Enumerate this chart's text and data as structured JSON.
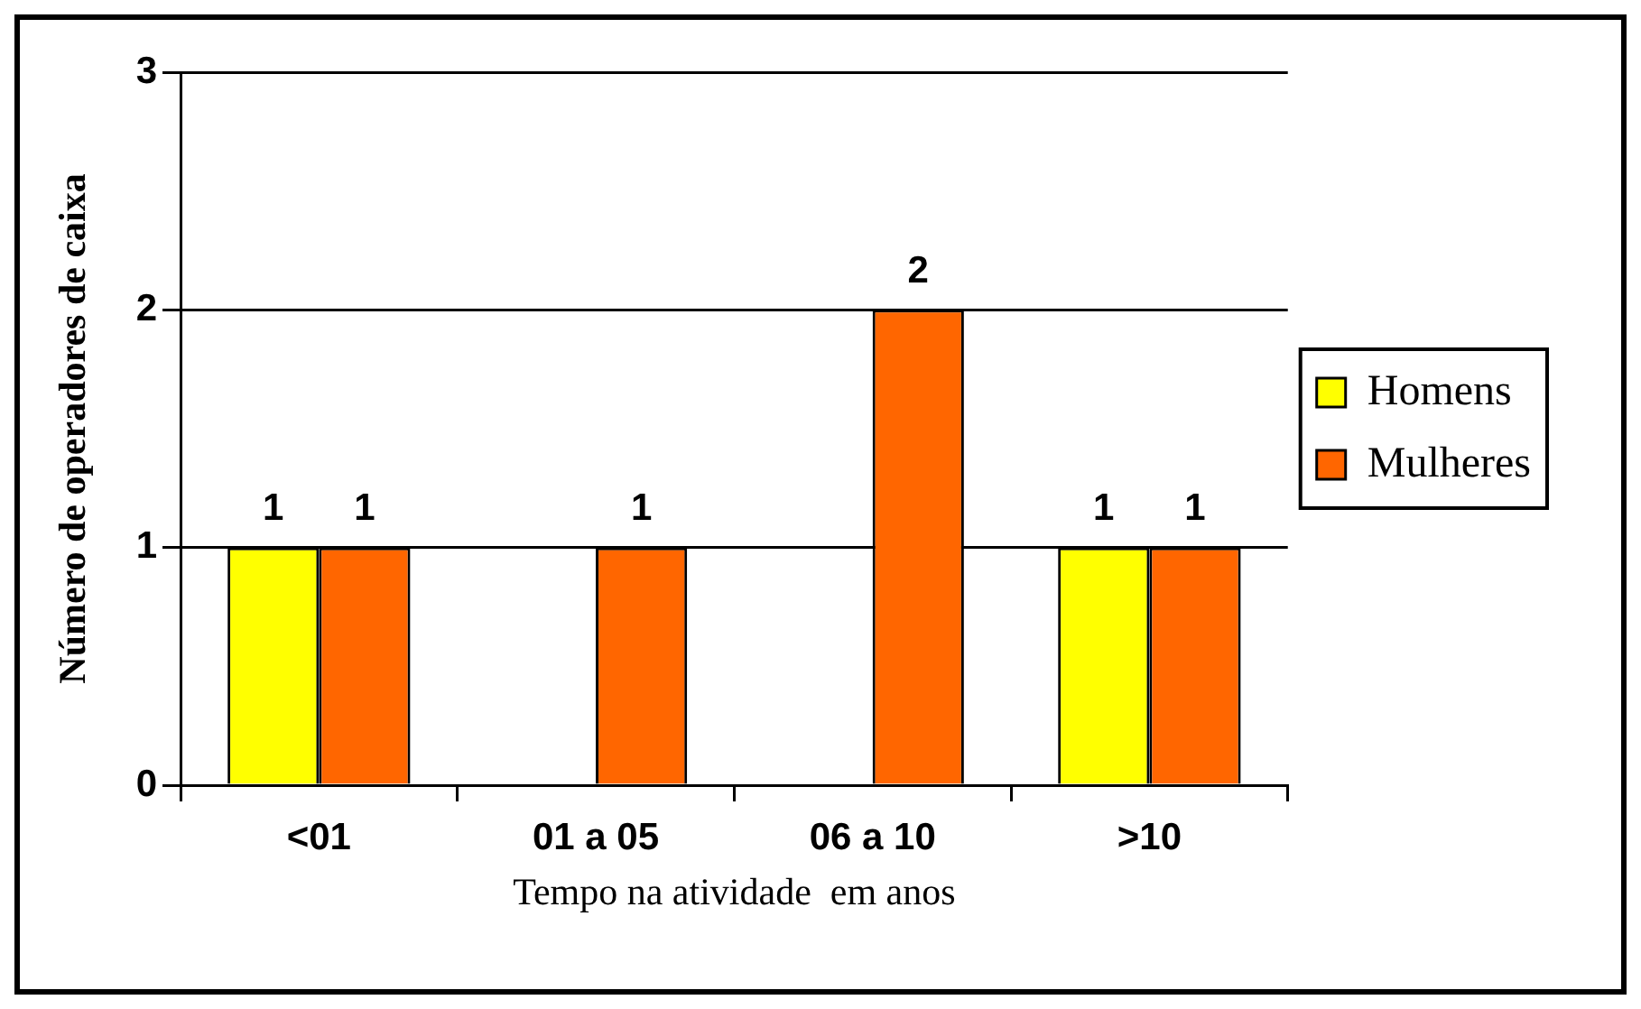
{
  "chart_data": {
    "type": "bar",
    "xlabel": "Tempo na atividade  em anos",
    "ylabel": "Número de operadores de caixa",
    "categories": [
      "<01",
      "01 a 05",
      "06 a 10",
      ">10"
    ],
    "series": [
      {
        "name": "Homens",
        "color": "#ffff00",
        "values": [
          1,
          null,
          null,
          1
        ]
      },
      {
        "name": "Mulheres",
        "color": "#ff6600",
        "values": [
          1,
          1,
          2,
          1
        ]
      }
    ],
    "ylim": [
      0,
      3
    ],
    "yticks": [
      0,
      1,
      2,
      3
    ],
    "grid": "y",
    "legend": "right",
    "data_labels": true
  }
}
